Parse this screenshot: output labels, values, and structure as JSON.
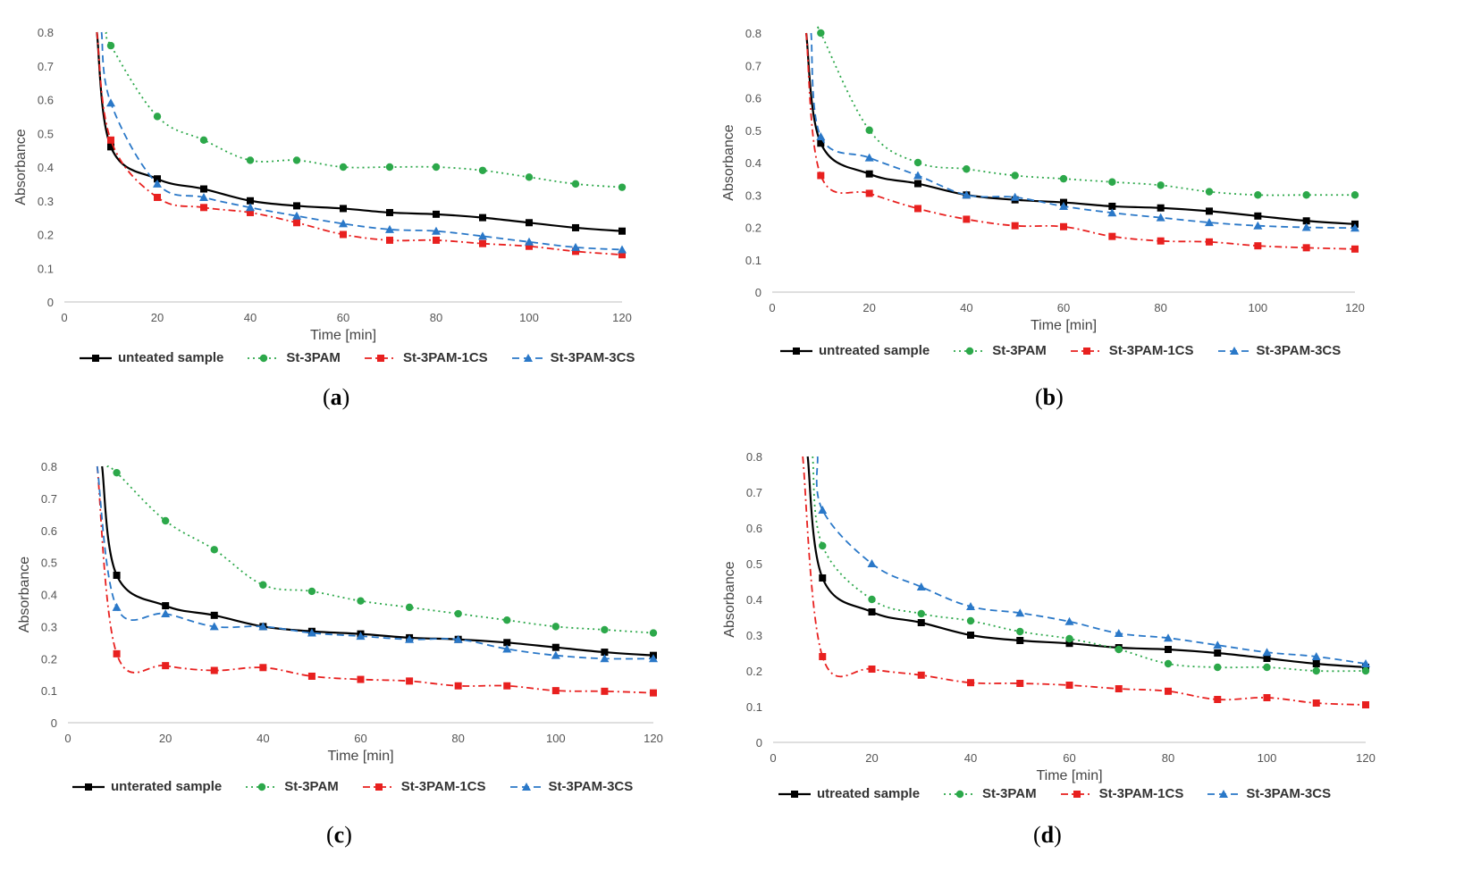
{
  "chart_data": [
    {
      "type": "line",
      "panel": "a",
      "caption": "a",
      "xlabel": "Time [min]",
      "ylabel": "Absorbance",
      "xlim": [
        0,
        120
      ],
      "ylim": [
        0,
        0.8
      ],
      "xticks": [
        "0",
        "20",
        "40",
        "60",
        "80",
        "100",
        "120"
      ],
      "yticks": [
        "0",
        "0.1",
        "0.2",
        "0.3",
        "0.4",
        "0.5",
        "0.6",
        "0.7",
        "0.8"
      ],
      "x": [
        10,
        20,
        30,
        40,
        50,
        60,
        70,
        80,
        90,
        100,
        110,
        120
      ],
      "series": [
        {
          "name": "unteated sample",
          "color": "#000000",
          "dash": "",
          "marker": "square",
          "start": [
            7,
            0.8
          ],
          "values": [
            0.46,
            0.365,
            0.335,
            0.3,
            0.285,
            0.277,
            0.265,
            0.26,
            0.25,
            0.235,
            0.22,
            0.21
          ]
        },
        {
          "name": "St-3PAM",
          "color": "#2ca84a",
          "dash": "2,4",
          "marker": "circle",
          "start": [
            9,
            0.8
          ],
          "values": [
            0.76,
            0.55,
            0.48,
            0.42,
            0.42,
            0.4,
            0.4,
            0.4,
            0.39,
            0.37,
            0.35,
            0.34
          ]
        },
        {
          "name": "St-3PAM-1CS",
          "color": "#e8201f",
          "dash": "8,4,2,4",
          "marker": "square",
          "start": [
            7,
            0.8
          ],
          "values": [
            0.48,
            0.31,
            0.28,
            0.265,
            0.235,
            0.2,
            0.183,
            0.183,
            0.173,
            0.165,
            0.15,
            0.14
          ]
        },
        {
          "name": "St-3PAM-3CS",
          "color": "#2a78c8",
          "dash": "8,5",
          "marker": "triangle",
          "start": [
            8,
            0.8
          ],
          "values": [
            0.59,
            0.35,
            0.31,
            0.28,
            0.255,
            0.232,
            0.215,
            0.21,
            0.195,
            0.178,
            0.162,
            0.155
          ]
        }
      ]
    },
    {
      "type": "line",
      "panel": "b",
      "caption": "b",
      "xlabel": "Time [min]",
      "ylabel": "Absorbance",
      "xlim": [
        0,
        120
      ],
      "ylim": [
        0,
        0.8
      ],
      "xticks": [
        "0",
        "20",
        "40",
        "60",
        "80",
        "100",
        "120"
      ],
      "yticks": [
        "0",
        "0.1",
        "0.2",
        "0.3",
        "0.4",
        "0.5",
        "0.6",
        "0.7",
        "0.8"
      ],
      "x": [
        10,
        20,
        30,
        40,
        50,
        60,
        70,
        80,
        90,
        100,
        110,
        120
      ],
      "series": [
        {
          "name": "untreated sample",
          "color": "#000000",
          "dash": "",
          "marker": "square",
          "start": [
            7,
            0.8
          ],
          "values": [
            0.46,
            0.365,
            0.335,
            0.3,
            0.285,
            0.277,
            0.265,
            0.26,
            0.25,
            0.235,
            0.22,
            0.21
          ]
        },
        {
          "name": "St-3PAM",
          "color": "#2ca84a",
          "dash": "2,4",
          "marker": "circle",
          "start": [
            10,
            0.8
          ],
          "values": [
            0.8,
            0.5,
            0.4,
            0.38,
            0.36,
            0.35,
            0.34,
            0.33,
            0.31,
            0.3,
            0.3,
            0.3
          ]
        },
        {
          "name": "St-3PAM-1CS",
          "color": "#e8201f",
          "dash": "8,4,2,4",
          "marker": "square",
          "start": [
            7,
            0.8
          ],
          "values": [
            0.36,
            0.305,
            0.258,
            0.225,
            0.205,
            0.202,
            0.172,
            0.158,
            0.155,
            0.143,
            0.137,
            0.133
          ]
        },
        {
          "name": "St-3PAM-3CS",
          "color": "#2a78c8",
          "dash": "8,5",
          "marker": "triangle",
          "start": [
            8,
            0.8
          ],
          "values": [
            0.48,
            0.415,
            0.36,
            0.3,
            0.293,
            0.265,
            0.245,
            0.23,
            0.215,
            0.205,
            0.2,
            0.198
          ]
        }
      ]
    },
    {
      "type": "line",
      "panel": "c",
      "caption": "c",
      "xlabel": "Time [min]",
      "ylabel": "Absorbance",
      "xlim": [
        0,
        120
      ],
      "ylim": [
        0,
        0.8
      ],
      "xticks": [
        "0",
        "20",
        "40",
        "60",
        "80",
        "100",
        "120"
      ],
      "yticks": [
        "0",
        "0.1",
        "0.2",
        "0.3",
        "0.4",
        "0.5",
        "0.6",
        "0.7",
        "0.8"
      ],
      "x": [
        10,
        20,
        30,
        40,
        50,
        60,
        70,
        80,
        90,
        100,
        110,
        120
      ],
      "series": [
        {
          "name": "unterated sample",
          "color": "#000000",
          "dash": "",
          "marker": "square",
          "start": [
            7,
            0.8
          ],
          "values": [
            0.46,
            0.365,
            0.335,
            0.3,
            0.285,
            0.277,
            0.265,
            0.26,
            0.25,
            0.235,
            0.22,
            0.21
          ]
        },
        {
          "name": "St-3PAM",
          "color": "#2ca84a",
          "dash": "2,4",
          "marker": "circle",
          "start": [
            8,
            0.8
          ],
          "values": [
            0.78,
            0.63,
            0.54,
            0.43,
            0.41,
            0.38,
            0.36,
            0.34,
            0.32,
            0.3,
            0.29,
            0.28
          ]
        },
        {
          "name": "St-3PAM-1CS",
          "color": "#e8201f",
          "dash": "8,4,2,4",
          "marker": "square",
          "start": [
            6,
            0.8
          ],
          "values": [
            0.215,
            0.178,
            0.163,
            0.172,
            0.145,
            0.135,
            0.13,
            0.115,
            0.115,
            0.1,
            0.098,
            0.093
          ]
        },
        {
          "name": "St-3PAM-3CS",
          "color": "#2a78c8",
          "dash": "8,5",
          "marker": "triangle",
          "start": [
            6,
            0.8
          ],
          "values": [
            0.36,
            0.34,
            0.3,
            0.3,
            0.28,
            0.27,
            0.26,
            0.26,
            0.23,
            0.21,
            0.2,
            0.2
          ]
        }
      ]
    },
    {
      "type": "line",
      "panel": "d",
      "caption": "d",
      "xlabel": "Time [min]",
      "ylabel": "Absorbance",
      "xlim": [
        0,
        120
      ],
      "ylim": [
        0,
        0.8
      ],
      "xticks": [
        "0",
        "20",
        "40",
        "60",
        "80",
        "100",
        "120"
      ],
      "yticks": [
        "0",
        "0.1",
        "0.2",
        "0.3",
        "0.4",
        "0.5",
        "0.6",
        "0.7",
        "0.8"
      ],
      "x": [
        10,
        20,
        30,
        40,
        50,
        60,
        70,
        80,
        90,
        100,
        110,
        120
      ],
      "series": [
        {
          "name": "utreated sample",
          "color": "#000000",
          "dash": "",
          "marker": "square",
          "start": [
            7,
            0.8
          ],
          "values": [
            0.46,
            0.365,
            0.335,
            0.3,
            0.285,
            0.277,
            0.265,
            0.26,
            0.25,
            0.235,
            0.22,
            0.21
          ]
        },
        {
          "name": "St-3PAM",
          "color": "#2ca84a",
          "dash": "2,4",
          "marker": "circle",
          "start": [
            8,
            0.8
          ],
          "values": [
            0.55,
            0.4,
            0.36,
            0.34,
            0.31,
            0.29,
            0.26,
            0.22,
            0.21,
            0.21,
            0.2,
            0.2
          ]
        },
        {
          "name": "St-3PAM-1CS",
          "color": "#e8201f",
          "dash": "8,4,2,4",
          "marker": "square",
          "start": [
            6,
            0.8
          ],
          "values": [
            0.24,
            0.205,
            0.188,
            0.167,
            0.165,
            0.16,
            0.15,
            0.143,
            0.12,
            0.125,
            0.11,
            0.105
          ]
        },
        {
          "name": "St-3PAM-3CS",
          "color": "#2a78c8",
          "dash": "8,5",
          "marker": "triangle",
          "start": [
            9,
            0.8
          ],
          "values": [
            0.65,
            0.5,
            0.435,
            0.38,
            0.362,
            0.338,
            0.305,
            0.292,
            0.272,
            0.252,
            0.24,
            0.22
          ]
        }
      ]
    }
  ]
}
